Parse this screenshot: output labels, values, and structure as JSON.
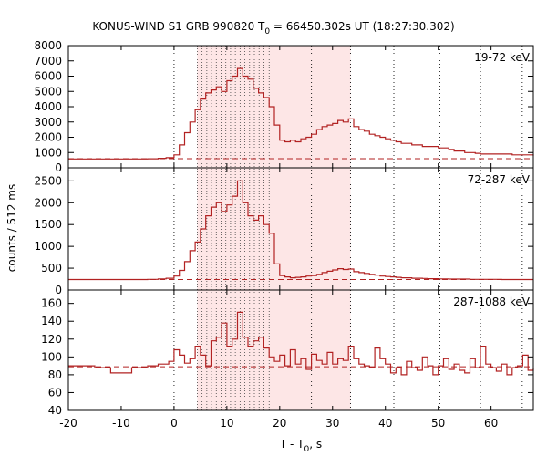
{
  "chart_data": {
    "type": "line",
    "title_prefix": "KONUS-WIND S1 GRB 990820 T",
    "title_subscript": "0",
    "title_suffix": " = 66450.302s UT (18:27:30.302)",
    "xlabel_prefix": "T - T",
    "xlabel_subscript": "0",
    "xlabel_suffix": ", s",
    "ylabel": "counts / 512 ms",
    "xlim": [
      -20,
      68
    ],
    "xticks": [
      -20,
      -10,
      0,
      10,
      20,
      30,
      40,
      50,
      60
    ],
    "line_color": "#b22222",
    "shade_color": "#fde6e6",
    "highlight_region": [
      4.4,
      33.4
    ],
    "dense_region": [
      4.4,
      18.0
    ],
    "dense_lines_x": [
      4.4,
      5.3,
      6.2,
      7.1,
      8.0,
      8.9,
      9.8,
      10.7,
      11.6,
      12.5,
      13.4,
      14.3,
      15.2,
      16.1,
      17.0,
      18.0
    ],
    "sparse_lines_x": [
      0,
      26.0,
      33.4,
      41.6,
      50.3,
      58.0,
      65.9
    ],
    "panels": [
      {
        "label": "19-72 keV",
        "ylim": [
          0,
          8000
        ],
        "yticks": [
          0,
          1000,
          2000,
          3000,
          4000,
          5000,
          6000,
          7000,
          8000
        ],
        "background": 600,
        "points": [
          [
            -20,
            580
          ],
          [
            -10,
            580
          ],
          [
            -5,
            590
          ],
          [
            -3,
            620
          ],
          [
            -1.5,
            660
          ],
          [
            0,
            850
          ],
          [
            1,
            1500
          ],
          [
            2,
            2300
          ],
          [
            3,
            3000
          ],
          [
            4,
            3800
          ],
          [
            5,
            4500
          ],
          [
            6,
            4900
          ],
          [
            7,
            5100
          ],
          [
            8,
            5300
          ],
          [
            9,
            5000
          ],
          [
            10,
            5700
          ],
          [
            11,
            6000
          ],
          [
            12,
            6500
          ],
          [
            13,
            6000
          ],
          [
            14,
            5800
          ],
          [
            15,
            5200
          ],
          [
            16,
            4900
          ],
          [
            17,
            4600
          ],
          [
            18,
            4000
          ],
          [
            19,
            2800
          ],
          [
            20,
            1800
          ],
          [
            21,
            1700
          ],
          [
            22,
            1800
          ],
          [
            23,
            1700
          ],
          [
            24,
            1900
          ],
          [
            25,
            2000
          ],
          [
            26,
            2200
          ],
          [
            27,
            2500
          ],
          [
            28,
            2700
          ],
          [
            29,
            2800
          ],
          [
            30,
            2900
          ],
          [
            31,
            3100
          ],
          [
            32,
            3000
          ],
          [
            33,
            3200
          ],
          [
            34,
            2700
          ],
          [
            35,
            2500
          ],
          [
            36,
            2400
          ],
          [
            37,
            2200
          ],
          [
            38,
            2100
          ],
          [
            39,
            2000
          ],
          [
            40,
            1900
          ],
          [
            41,
            1800
          ],
          [
            42,
            1700
          ],
          [
            43,
            1600
          ],
          [
            44,
            1600
          ],
          [
            45,
            1500
          ],
          [
            46,
            1500
          ],
          [
            47,
            1400
          ],
          [
            48,
            1400
          ],
          [
            49,
            1400
          ],
          [
            50,
            1300
          ],
          [
            51,
            1300
          ],
          [
            52,
            1200
          ],
          [
            53,
            1100
          ],
          [
            54,
            1100
          ],
          [
            55,
            1000
          ],
          [
            56,
            1000
          ],
          [
            57,
            950
          ],
          [
            58,
            900
          ],
          [
            60,
            900
          ],
          [
            62,
            900
          ],
          [
            64,
            850
          ],
          [
            66,
            850
          ],
          [
            68,
            800
          ]
        ]
      },
      {
        "label": "72-287 keV",
        "ylim": [
          0,
          2800
        ],
        "yticks": [
          0,
          500,
          1000,
          1500,
          2000,
          2500
        ],
        "background": 240,
        "points": [
          [
            -20,
            240
          ],
          [
            -10,
            240
          ],
          [
            -5,
            245
          ],
          [
            -3,
            255
          ],
          [
            -1.5,
            270
          ],
          [
            0,
            320
          ],
          [
            1,
            450
          ],
          [
            2,
            650
          ],
          [
            3,
            900
          ],
          [
            4,
            1100
          ],
          [
            5,
            1400
          ],
          [
            6,
            1700
          ],
          [
            7,
            1900
          ],
          [
            8,
            2000
          ],
          [
            9,
            1800
          ],
          [
            10,
            1950
          ],
          [
            11,
            2150
          ],
          [
            12,
            2500
          ],
          [
            13,
            2000
          ],
          [
            14,
            1700
          ],
          [
            15,
            1600
          ],
          [
            16,
            1700
          ],
          [
            17,
            1500
          ],
          [
            18,
            1300
          ],
          [
            19,
            600
          ],
          [
            20,
            330
          ],
          [
            21,
            300
          ],
          [
            22,
            280
          ],
          [
            23,
            290
          ],
          [
            24,
            300
          ],
          [
            25,
            320
          ],
          [
            26,
            330
          ],
          [
            27,
            360
          ],
          [
            28,
            400
          ],
          [
            29,
            430
          ],
          [
            30,
            460
          ],
          [
            31,
            490
          ],
          [
            32,
            470
          ],
          [
            33,
            480
          ],
          [
            34,
            420
          ],
          [
            35,
            400
          ],
          [
            36,
            380
          ],
          [
            37,
            360
          ],
          [
            38,
            340
          ],
          [
            39,
            320
          ],
          [
            40,
            310
          ],
          [
            41,
            300
          ],
          [
            42,
            290
          ],
          [
            43,
            280
          ],
          [
            44,
            280
          ],
          [
            45,
            270
          ],
          [
            46,
            270
          ],
          [
            47,
            265
          ],
          [
            48,
            260
          ],
          [
            50,
            255
          ],
          [
            52,
            250
          ],
          [
            54,
            250
          ],
          [
            56,
            245
          ],
          [
            58,
            245
          ],
          [
            60,
            245
          ],
          [
            62,
            240
          ],
          [
            64,
            240
          ],
          [
            66,
            240
          ],
          [
            68,
            240
          ]
        ]
      },
      {
        "label": "287-1088 keV",
        "ylim": [
          40,
          175
        ],
        "yticks": [
          40,
          60,
          80,
          100,
          120,
          140,
          160
        ],
        "background": 89,
        "points": [
          [
            -20,
            90
          ],
          [
            -15,
            88
          ],
          [
            -12,
            82
          ],
          [
            -8,
            88
          ],
          [
            -5,
            90
          ],
          [
            -3,
            92
          ],
          [
            -1,
            95
          ],
          [
            0,
            108
          ],
          [
            1,
            102
          ],
          [
            2,
            93
          ],
          [
            3,
            98
          ],
          [
            4,
            112
          ],
          [
            5,
            102
          ],
          [
            6,
            90
          ],
          [
            7,
            118
          ],
          [
            8,
            122
          ],
          [
            9,
            138
          ],
          [
            10,
            112
          ],
          [
            11,
            120
          ],
          [
            12,
            150
          ],
          [
            13,
            122
          ],
          [
            14,
            112
          ],
          [
            15,
            118
          ],
          [
            16,
            122
          ],
          [
            17,
            110
          ],
          [
            18,
            100
          ],
          [
            19,
            95
          ],
          [
            20,
            102
          ],
          [
            21,
            90
          ],
          [
            22,
            108
          ],
          [
            23,
            92
          ],
          [
            24,
            98
          ],
          [
            25,
            86
          ],
          [
            26,
            103
          ],
          [
            27,
            96
          ],
          [
            28,
            92
          ],
          [
            29,
            105
          ],
          [
            30,
            92
          ],
          [
            31,
            98
          ],
          [
            32,
            96
          ],
          [
            33,
            112
          ],
          [
            34,
            98
          ],
          [
            35,
            92
          ],
          [
            36,
            90
          ],
          [
            37,
            88
          ],
          [
            38,
            110
          ],
          [
            39,
            98
          ],
          [
            40,
            92
          ],
          [
            41,
            82
          ],
          [
            42,
            88
          ],
          [
            43,
            80
          ],
          [
            44,
            95
          ],
          [
            45,
            88
          ],
          [
            46,
            85
          ],
          [
            47,
            100
          ],
          [
            48,
            90
          ],
          [
            49,
            80
          ],
          [
            50,
            90
          ],
          [
            51,
            98
          ],
          [
            52,
            86
          ],
          [
            53,
            92
          ],
          [
            54,
            85
          ],
          [
            55,
            82
          ],
          [
            56,
            98
          ],
          [
            57,
            88
          ],
          [
            58,
            112
          ],
          [
            59,
            92
          ],
          [
            60,
            88
          ],
          [
            61,
            84
          ],
          [
            62,
            92
          ],
          [
            63,
            80
          ],
          [
            64,
            88
          ],
          [
            65,
            90
          ],
          [
            66,
            102
          ],
          [
            67,
            85
          ],
          [
            68,
            88
          ]
        ]
      }
    ]
  }
}
